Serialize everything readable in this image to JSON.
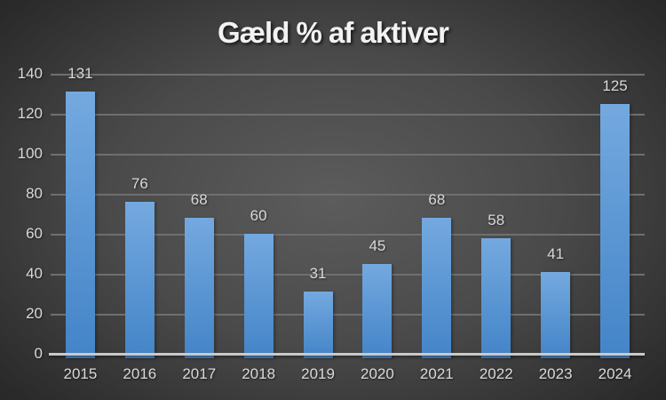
{
  "title": "Gæld % af aktiver",
  "chart_data": {
    "type": "bar",
    "title": "Gæld % af aktiver",
    "categories": [
      "2015",
      "2016",
      "2017",
      "2018",
      "2019",
      "2020",
      "2021",
      "2022",
      "2023",
      "2024"
    ],
    "values": [
      131,
      76,
      68,
      60,
      31,
      45,
      68,
      58,
      41,
      125
    ],
    "xlabel": "",
    "ylabel": "",
    "ylim": [
      0,
      140
    ],
    "yticks": [
      0,
      20,
      40,
      60,
      80,
      100,
      120,
      140
    ],
    "grid": true,
    "legend": false,
    "data_labels": true
  },
  "colors": {
    "background_center": "#5C5C5C",
    "background_edge": "#242424",
    "bar_gradient_top": "#74A9DF",
    "bar_gradient_bottom": "#4384C8",
    "gridline": "#6F6F6F",
    "axis_line": "#C9C9C9",
    "tick_label_text": "#D9D9D9",
    "data_label_text": "#D9D9D9",
    "title_text": "#F2F2F2"
  }
}
